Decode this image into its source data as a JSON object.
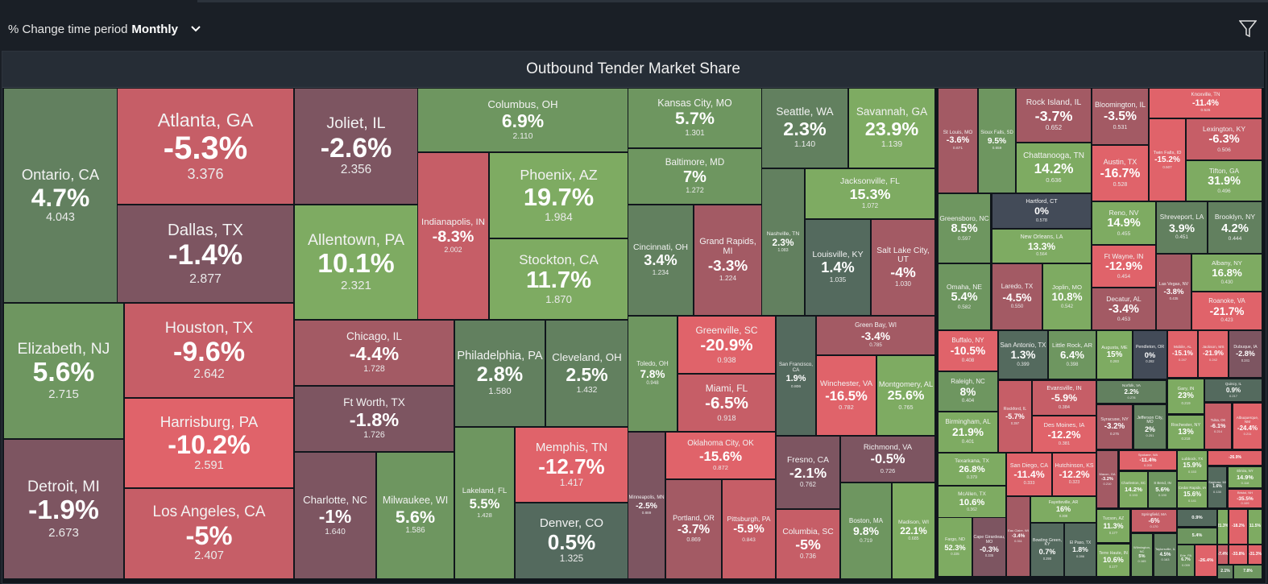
{
  "filter": {
    "label": "% Change time period",
    "value": "Monthly",
    "chevron_icon": "chevron-down-icon",
    "filter_icon": "filter-icon"
  },
  "chart_title": "Outbound Tender Market Share",
  "chart_data": {
    "type": "treemap",
    "title": "Outbound Tender Market Share",
    "colors": {
      "strong_negative": "#e0636a",
      "negative": "#c65e67",
      "mild_negative": "#a35a64",
      "slight_negative": "#7d5561",
      "zero": "#434b58",
      "slight_positive": "#546a5e",
      "positive": "#62805f",
      "strong_positive": "#7eab62"
    },
    "tiles": [
      {
        "city": "Ontario, CA",
        "pct": "4.7%",
        "value": "4.043"
      },
      {
        "city": "Elizabeth, NJ",
        "pct": "5.6%",
        "value": "2.715"
      },
      {
        "city": "Detroit, MI",
        "pct": "-1.9%",
        "value": "2.673"
      },
      {
        "city": "Atlanta, GA",
        "pct": "-5.3%",
        "value": "3.376"
      },
      {
        "city": "Dallas, TX",
        "pct": "-1.4%",
        "value": "2.877"
      },
      {
        "city": "Houston, TX",
        "pct": "-9.6%",
        "value": "2.642"
      },
      {
        "city": "Harrisburg, PA",
        "pct": "-10.2%",
        "value": "2.591"
      },
      {
        "city": "Los Angeles, CA",
        "pct": "-5%",
        "value": "2.407"
      },
      {
        "city": "Joliet, IL",
        "pct": "-2.6%",
        "value": "2.356"
      },
      {
        "city": "Allentown, PA",
        "pct": "10.1%",
        "value": "2.321"
      },
      {
        "city": "Chicago, IL",
        "pct": "-4.4%",
        "value": "1.728"
      },
      {
        "city": "Ft Worth, TX",
        "pct": "-1.8%",
        "value": "1.726"
      },
      {
        "city": "Charlotte, NC",
        "pct": "-1%",
        "value": "1.640"
      },
      {
        "city": "Milwaukee, WI",
        "pct": "5.6%",
        "value": "1.586"
      },
      {
        "city": "Columbus, OH",
        "pct": "6.9%",
        "value": "2.110"
      },
      {
        "city": "Indianapolis, IN",
        "pct": "-8.3%",
        "value": "2.002"
      },
      {
        "city": "Phoenix, AZ",
        "pct": "19.7%",
        "value": "1.984"
      },
      {
        "city": "Stockton, CA",
        "pct": "11.7%",
        "value": "1.870"
      },
      {
        "city": "Philadelphia, PA",
        "pct": "2.8%",
        "value": "1.580"
      },
      {
        "city": "Cleveland, OH",
        "pct": "2.5%",
        "value": "1.432"
      },
      {
        "city": "Lakeland, FL",
        "pct": "5.5%",
        "value": "1.428"
      },
      {
        "city": "Memphis, TN",
        "pct": "-12.7%",
        "value": "1.417"
      },
      {
        "city": "Denver, CO",
        "pct": "0.5%",
        "value": "1.325"
      },
      {
        "city": "Kansas City, MO",
        "pct": "5.7%",
        "value": "1.301"
      },
      {
        "city": "Baltimore, MD",
        "pct": "7%",
        "value": "1.272"
      },
      {
        "city": "Cincinnati, OH",
        "pct": "3.4%",
        "value": "1.234"
      },
      {
        "city": "Grand Rapids, MI",
        "pct": "-3.3%",
        "value": "1.224"
      },
      {
        "city": "Toledo, OH",
        "pct": "7.8%",
        "value": "0.948"
      },
      {
        "city": "Greenville, SC",
        "pct": "-20.9%",
        "value": "0.938"
      },
      {
        "city": "Miami, FL",
        "pct": "-6.5%",
        "value": "0.918"
      },
      {
        "city": "Oklahoma City, OK",
        "pct": "-15.6%",
        "value": "0.872"
      },
      {
        "city": "Minneapolis, MN",
        "pct": "-2.5%",
        "value": "0.889"
      },
      {
        "city": "Portland, OR",
        "pct": "-3.7%",
        "value": "0.869"
      },
      {
        "city": "Pittsburgh, PA",
        "pct": "-5.9%",
        "value": "0.843"
      },
      {
        "city": "Seattle, WA",
        "pct": "2.3%",
        "value": "1.140"
      },
      {
        "city": "Savannah, GA",
        "pct": "23.9%",
        "value": "1.139"
      },
      {
        "city": "Nashville, TN",
        "pct": "2.3%",
        "value": "1.083"
      },
      {
        "city": "Jacksonville, FL",
        "pct": "15.3%",
        "value": "1.072"
      },
      {
        "city": "Louisville, KY",
        "pct": "1.4%",
        "value": "1.035"
      },
      {
        "city": "Salt Lake City, UT",
        "pct": "-4%",
        "value": "1.030"
      },
      {
        "city": "San Francisco, CA",
        "pct": "1.9%",
        "value": "0.806"
      },
      {
        "city": "Green Bay, WI",
        "pct": "-3.4%",
        "value": "0.785"
      },
      {
        "city": "Winchester, VA",
        "pct": "-16.5%",
        "value": "0.782"
      },
      {
        "city": "Montgomery, AL",
        "pct": "25.6%",
        "value": "0.765"
      },
      {
        "city": "Fresno, CA",
        "pct": "-2.1%",
        "value": "0.762"
      },
      {
        "city": "Columbia, SC",
        "pct": "-5%",
        "value": "0.736"
      },
      {
        "city": "Richmond, VA",
        "pct": "-0.5%",
        "value": "0.726"
      },
      {
        "city": "Boston, MA",
        "pct": "9.8%",
        "value": "0.719"
      },
      {
        "city": "Madison, WI",
        "pct": "22.1%",
        "value": "0.685"
      },
      {
        "city": "St Louis, MO",
        "pct": "-3.6%",
        "value": "0.671"
      },
      {
        "city": "Sioux Falls, SD",
        "pct": "9.5%",
        "value": "0.659"
      },
      {
        "city": "Rock Island, IL",
        "pct": "-3.7%",
        "value": "0.652"
      },
      {
        "city": "Chattanooga, TN",
        "pct": "14.2%",
        "value": "0.636"
      },
      {
        "city": "Bloomington, IL",
        "pct": "-3.5%",
        "value": "0.531"
      },
      {
        "city": "Austin, TX",
        "pct": "-16.7%",
        "value": "0.528"
      },
      {
        "city": "Knoxville, TN",
        "pct": "-11.4%",
        "value": "0.526"
      },
      {
        "city": "Twin Falls, ID",
        "pct": "-15.2%",
        "value": "0.507"
      },
      {
        "city": "Lexington, KY",
        "pct": "-6.3%",
        "value": "0.506"
      },
      {
        "city": "Tifton, GA",
        "pct": "31.9%",
        "value": "0.496"
      },
      {
        "city": "Greensboro, NC",
        "pct": "8.5%",
        "value": "0.597"
      },
      {
        "city": "Hartford, CT",
        "pct": "0%",
        "value": "0.578"
      },
      {
        "city": "New Orleans, LA",
        "pct": "13.3%",
        "value": "0.564"
      },
      {
        "city": "Omaha, NE",
        "pct": "5.4%",
        "value": "0.582"
      },
      {
        "city": "Laredo, TX",
        "pct": "-4.5%",
        "value": "0.550"
      },
      {
        "city": "Joplin, MO",
        "pct": "10.8%",
        "value": "0.542"
      },
      {
        "city": "Reno, NV",
        "pct": "14.9%",
        "value": "0.455"
      },
      {
        "city": "Ft Wayne, IN",
        "pct": "-12.9%",
        "value": "0.454"
      },
      {
        "city": "Decatur, AL",
        "pct": "-3.4%",
        "value": "0.453"
      },
      {
        "city": "Shreveport, LA",
        "pct": "3.9%",
        "value": "0.451"
      },
      {
        "city": "Brooklyn, NY",
        "pct": "4.2%",
        "value": "0.444"
      },
      {
        "city": "Las Vegas, NV",
        "pct": "-3.8%",
        "value": "0.435"
      },
      {
        "city": "Albany, NY",
        "pct": "16.8%",
        "value": "0.430"
      },
      {
        "city": "Roanoke, VA",
        "pct": "-21.7%",
        "value": "0.423"
      },
      {
        "city": "Buffalo, NY",
        "pct": "-10.5%",
        "value": "0.408"
      },
      {
        "city": "Raleigh, NC",
        "pct": "8%",
        "value": "0.404"
      },
      {
        "city": "Birmingham, AL",
        "pct": "21.9%",
        "value": "0.401"
      },
      {
        "city": "San Antonio, TX",
        "pct": "1.3%",
        "value": "0.399"
      },
      {
        "city": "Little Rock, AR",
        "pct": "6.4%",
        "value": "0.398"
      },
      {
        "city": "Augusta, ME",
        "pct": "15%",
        "value": "0.283"
      },
      {
        "city": "Pendleton, OR",
        "pct": "0%",
        "value": "0.282"
      },
      {
        "city": "Mobile, AL",
        "pct": "-15.1%",
        "value": "0.247"
      },
      {
        "city": "Jackson, MS",
        "pct": "-21.9%",
        "value": "0.242"
      },
      {
        "city": "Dubuque, IA",
        "pct": "-2.8%",
        "value": "0.241"
      },
      {
        "city": "Rockford, IL",
        "pct": "-5.7%",
        "value": "0.397"
      },
      {
        "city": "Evansville, IN",
        "pct": "-5.9%",
        "value": "0.384"
      },
      {
        "city": "Des Moines, IA",
        "pct": "-12.2%",
        "value": "0.381"
      },
      {
        "city": "Norfolk, VA",
        "pct": "2.2%",
        "value": "0.278"
      },
      {
        "city": "Syracuse, NY",
        "pct": "-3.2%",
        "value": "0.275"
      },
      {
        "city": "Jefferson City, MO",
        "pct": "2%",
        "value": "0.251"
      },
      {
        "city": "Gary, IN",
        "pct": "23%",
        "value": "0.219"
      },
      {
        "city": "Rochester, NY",
        "pct": "13%",
        "value": "0.218"
      },
      {
        "city": "Quincy, IL",
        "pct": "0.9%",
        "value": "0.217"
      },
      {
        "city": "Tulsa, OK",
        "pct": "-6.1%",
        "value": "0.214"
      },
      {
        "city": "Albuquerque, NM",
        "pct": "-24.4%",
        "value": "0.211"
      },
      {
        "city": "Texarkana, TX",
        "pct": "26.8%",
        "value": "0.379"
      },
      {
        "city": "McAllen, TX",
        "pct": "10.6%",
        "value": "0.362"
      },
      {
        "city": "Fargo, ND",
        "pct": "52.3%",
        "value": "0.335"
      },
      {
        "city": "Cape Girardeau, MO",
        "pct": "-0.3%",
        "value": "0.335"
      },
      {
        "city": "San Diego, CA",
        "pct": "-11.4%",
        "value": "0.333"
      },
      {
        "city": "Hutchinson, KS",
        "pct": "-12.2%",
        "value": "0.323"
      },
      {
        "city": "Eau Claire, WI",
        "pct": "-3.4%",
        "value": "0.311"
      },
      {
        "city": "Fayetteville, AR",
        "pct": "16%",
        "value": "0.308"
      },
      {
        "city": "Bowling Green, KY",
        "pct": "0.7%",
        "value": "0.290"
      },
      {
        "city": "El Paso, TX",
        "pct": "1.8%",
        "value": "0.286"
      },
      {
        "city": "Macon, GA",
        "pct": "-3.2%",
        "value": "0.210"
      },
      {
        "city": "Spokane, WA",
        "pct": "-11.4%",
        "value": "0.200"
      },
      {
        "city": "Charleston, SC",
        "pct": "14.2%",
        "value": "0.193"
      },
      {
        "city": "S Bend, IN",
        "pct": "5.6%",
        "value": "0.190"
      },
      {
        "city": "Tucson, AZ",
        "pct": "11.3%",
        "value": "0.177"
      },
      {
        "city": "Terre Haute, IN",
        "pct": "10.6%",
        "value": "0.177"
      },
      {
        "city": "Springfield, MA",
        "pct": "-6%",
        "value": "0.170"
      },
      {
        "city": "Wilmington, NC",
        "pct": "5%",
        "value": "0.165"
      },
      {
        "city": "Taylorsville, IL",
        "pct": "4.5%",
        "value": "0.163"
      },
      {
        "city": "Lubbock, TX",
        "pct": "15.9%",
        "value": "0.153"
      },
      {
        "city": "Cedar Rapids, IA",
        "pct": "15.6%",
        "value": "0.141"
      },
      {
        "city": "Saginaw, MI",
        "pct": "1.6%",
        "value": "0.130"
      },
      {
        "city": "Elmira, NY",
        "pct": "14.9%",
        "value": "0.118"
      },
      {
        "city": "Bristol, NH",
        "pct": "-35.5%",
        "value": "0.109"
      },
      {
        "city": "Erie, PA",
        "pct": "6.7%",
        "value": "0.099"
      },
      {
        "city": "",
        "pct": "-26.9%",
        "value": ""
      },
      {
        "city": "",
        "pct": "0.9%",
        "value": ""
      },
      {
        "city": "",
        "pct": "5.4%",
        "value": ""
      },
      {
        "city": "",
        "pct": "-26.4%",
        "value": ""
      },
      {
        "city": "",
        "pct": "21.3%",
        "value": ""
      },
      {
        "city": "",
        "pct": "-18.2%",
        "value": ""
      },
      {
        "city": "",
        "pct": "11.5%",
        "value": ""
      },
      {
        "city": "",
        "pct": "-7.4%",
        "value": ""
      },
      {
        "city": "",
        "pct": "-33.8%",
        "value": ""
      },
      {
        "city": "",
        "pct": "-31.3%",
        "value": ""
      },
      {
        "city": "",
        "pct": "2.1%",
        "value": ""
      },
      {
        "city": "",
        "pct": "7.8%",
        "value": ""
      }
    ]
  }
}
